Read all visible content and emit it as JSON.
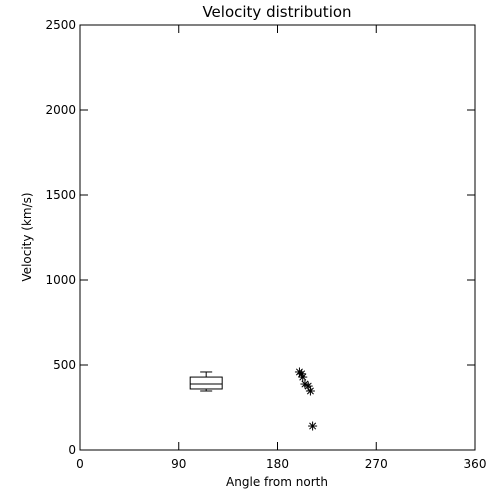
{
  "chart_data": {
    "type": "box",
    "title": "Velocity distribution",
    "x_label": "Angle from north",
    "y_label": "Velocity (km/s)",
    "xlim": [
      0,
      360
    ],
    "xticks": [
      0,
      90,
      180,
      270,
      360
    ],
    "ylim": [
      0,
      2500
    ],
    "yticks": [
      0,
      500,
      1000,
      1500,
      2000,
      2500
    ],
    "boxes": [
      {
        "x": 115,
        "low": 347,
        "q1": 359,
        "median": 388,
        "q3": 429,
        "high": 459
      }
    ],
    "points": {
      "x": [
        200,
        202,
        203,
        205,
        208,
        210,
        212
      ],
      "y": [
        459,
        448,
        429,
        388,
        376,
        347,
        141
      ]
    },
    "color": "#000000"
  }
}
